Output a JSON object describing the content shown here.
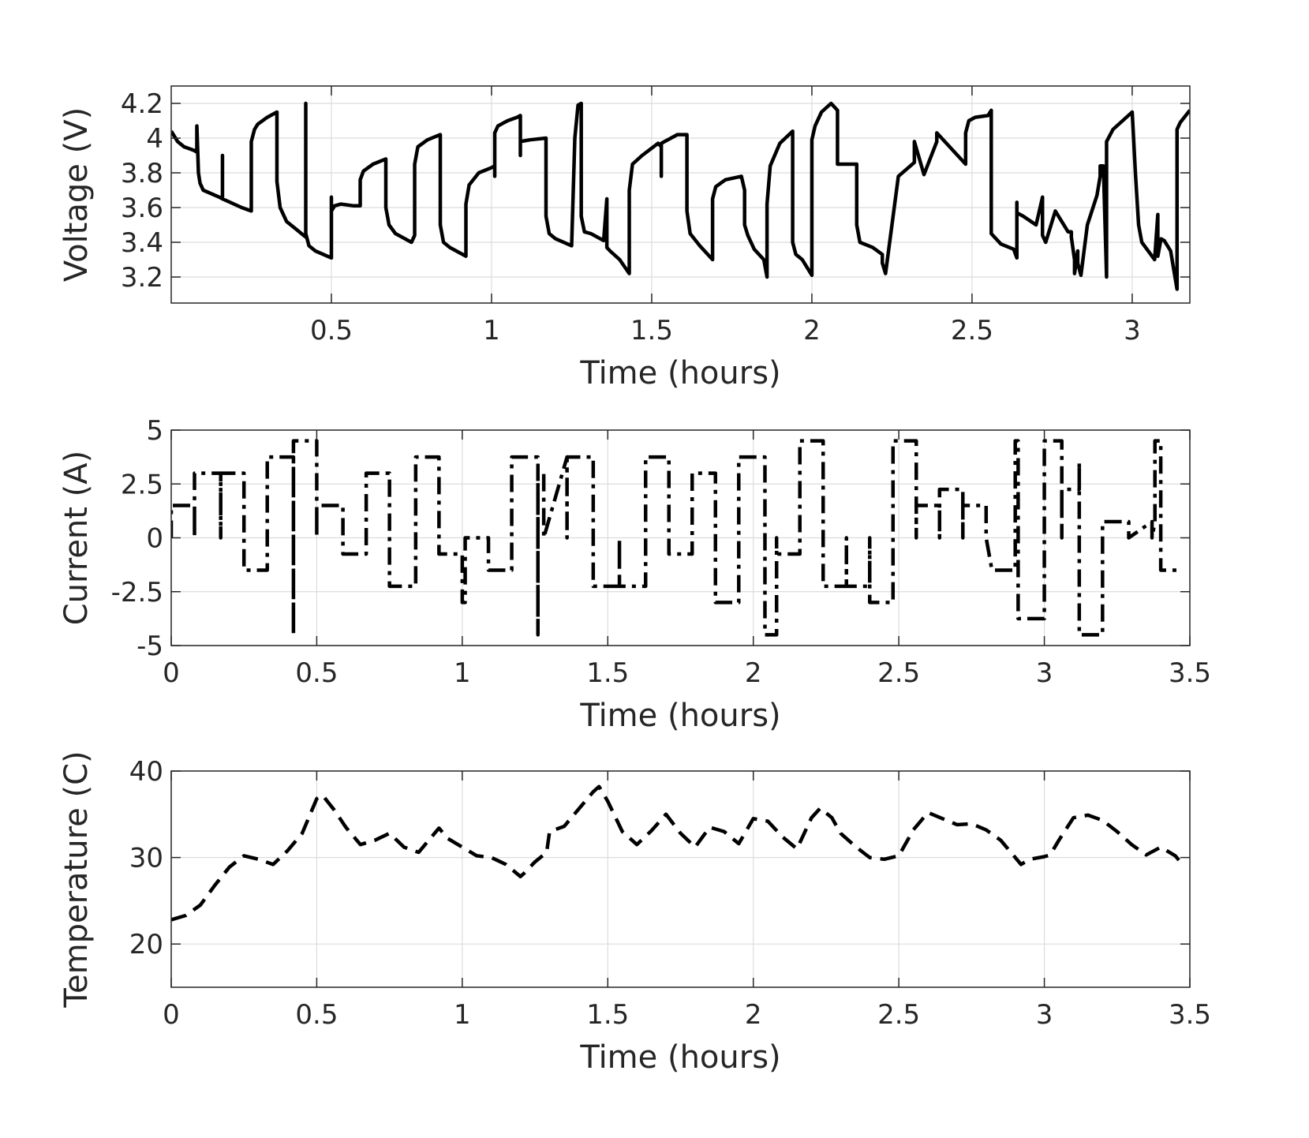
{
  "chart_data": [
    {
      "id": "voltage",
      "type": "line",
      "title": "",
      "xlabel": "Time (hours)",
      "ylabel": "Voltage (V)",
      "xlim": [
        0,
        3.18
      ],
      "ylim": [
        3.05,
        4.3
      ],
      "xticks": [
        0.5,
        1,
        1.5,
        2,
        2.5,
        3
      ],
      "xtick_labels": [
        "0.5",
        "1",
        "1.5",
        "2",
        "2.5",
        "3"
      ],
      "yticks": [
        3.2,
        3.4,
        3.6,
        3.8,
        4.0,
        4.2
      ],
      "ytick_labels": [
        "3.2",
        "3.4",
        "3.6",
        "3.8",
        "4",
        "4.2"
      ],
      "grid": true,
      "line_style": "solid",
      "color": "#000000",
      "series": [
        {
          "name": "Voltage",
          "x": [
            0.0,
            0.02,
            0.04,
            0.07,
            0.08,
            0.08,
            0.085,
            0.09,
            0.1,
            0.15,
            0.16,
            0.16,
            0.16,
            0.22,
            0.25,
            0.25,
            0.26,
            0.27,
            0.3,
            0.33,
            0.33,
            0.34,
            0.36,
            0.4,
            0.42,
            0.42,
            0.42,
            0.43,
            0.45,
            0.5,
            0.5,
            0.5,
            0.51,
            0.53,
            0.57,
            0.59,
            0.59,
            0.6,
            0.63,
            0.67,
            0.67,
            0.68,
            0.7,
            0.75,
            0.76,
            0.76,
            0.77,
            0.8,
            0.84,
            0.84,
            0.85,
            0.87,
            0.92,
            0.92,
            0.93,
            0.96,
            1.0,
            1.01,
            1.01,
            1.01,
            1.02,
            1.05,
            1.08,
            1.09,
            1.09,
            1.09,
            1.12,
            1.17,
            1.17,
            1.18,
            1.2,
            1.25,
            1.26,
            1.27,
            1.28,
            1.28,
            1.29,
            1.31,
            1.35,
            1.36,
            1.36,
            1.36,
            1.37,
            1.4,
            1.43,
            1.43,
            1.44,
            1.47,
            1.52,
            1.53,
            1.53,
            1.53,
            1.58,
            1.61,
            1.61,
            1.62,
            1.65,
            1.69,
            1.69,
            1.7,
            1.73,
            1.78,
            1.79,
            1.79,
            1.8,
            1.82,
            1.85,
            1.86,
            1.86,
            1.87,
            1.9,
            1.94,
            1.94,
            1.95,
            1.97,
            2.0,
            2.0,
            2.01,
            2.03,
            2.06,
            2.08,
            2.08,
            2.09,
            2.13,
            2.14,
            2.14,
            2.15,
            2.19,
            2.22,
            2.22,
            2.23,
            2.27,
            2.32,
            2.32,
            2.32,
            2.35,
            2.39,
            2.39,
            2.39,
            2.48,
            2.48,
            2.49,
            2.51,
            2.55,
            2.56,
            2.56,
            2.56,
            2.59,
            2.63,
            2.64,
            2.64,
            2.64,
            2.66,
            2.7,
            2.72,
            2.72,
            2.72,
            2.73,
            2.76,
            2.8,
            2.81,
            2.81,
            2.82,
            2.82,
            2.83,
            2.83,
            2.84,
            2.86,
            2.89,
            2.9,
            2.9,
            2.91,
            2.92,
            2.92,
            2.92,
            2.94,
            2.97,
            3.0,
            3.01,
            3.02,
            3.03,
            3.05,
            3.07,
            3.08,
            3.08,
            3.09,
            3.1,
            3.12,
            3.13,
            3.14,
            3.14,
            3.14,
            3.15,
            3.18
          ],
          "y": [
            4.04,
            3.98,
            3.95,
            3.93,
            3.92,
            4.07,
            3.8,
            3.74,
            3.7,
            3.66,
            3.65,
            3.9,
            3.65,
            3.6,
            3.58,
            3.98,
            4.05,
            4.08,
            4.12,
            4.15,
            3.75,
            3.6,
            3.52,
            3.46,
            3.43,
            4.2,
            3.45,
            3.38,
            3.35,
            3.31,
            3.66,
            3.58,
            3.61,
            3.62,
            3.61,
            3.61,
            3.76,
            3.81,
            3.85,
            3.88,
            3.6,
            3.5,
            3.45,
            3.4,
            3.44,
            3.85,
            3.95,
            3.99,
            4.02,
            3.5,
            3.4,
            3.37,
            3.32,
            3.62,
            3.73,
            3.8,
            3.83,
            3.84,
            3.78,
            4.03,
            4.07,
            4.1,
            4.12,
            4.13,
            3.9,
            3.98,
            3.99,
            4.0,
            3.55,
            3.45,
            3.42,
            3.38,
            4.0,
            4.19,
            4.2,
            3.55,
            3.46,
            3.45,
            3.41,
            3.65,
            3.4,
            3.37,
            3.35,
            3.3,
            3.22,
            3.7,
            3.85,
            3.9,
            3.97,
            3.95,
            3.78,
            3.97,
            4.02,
            4.02,
            3.58,
            3.45,
            3.38,
            3.3,
            3.65,
            3.72,
            3.76,
            3.78,
            3.7,
            3.5,
            3.44,
            3.36,
            3.3,
            3.2,
            3.62,
            3.84,
            3.97,
            4.04,
            3.4,
            3.33,
            3.3,
            3.21,
            3.99,
            4.07,
            4.15,
            4.2,
            4.16,
            3.85,
            3.85,
            3.85,
            3.85,
            3.5,
            3.4,
            3.37,
            3.33,
            3.28,
            3.22,
            3.78,
            3.86,
            3.92,
            3.98,
            3.79,
            3.98,
            4.01,
            4.03,
            3.85,
            4.03,
            4.1,
            4.12,
            4.13,
            4.16,
            3.6,
            3.45,
            3.39,
            3.36,
            3.31,
            3.63,
            3.57,
            3.55,
            3.5,
            3.66,
            3.47,
            3.44,
            3.4,
            3.58,
            3.46,
            3.46,
            3.43,
            3.3,
            3.22,
            3.35,
            3.28,
            3.21,
            3.5,
            3.67,
            3.78,
            3.84,
            3.84,
            3.2,
            3.84,
            3.98,
            4.05,
            4.1,
            4.15,
            3.8,
            3.5,
            3.4,
            3.35,
            3.3,
            3.56,
            3.32,
            3.42,
            3.41,
            3.35,
            3.24,
            3.13,
            3.95,
            4.05,
            4.09,
            4.16
          ]
        }
      ]
    },
    {
      "id": "current",
      "type": "line",
      "title": "",
      "xlabel": "Time (hours)",
      "ylabel": "Current (A)",
      "xlim": [
        0,
        3.5
      ],
      "ylim": [
        -5,
        5
      ],
      "xticks": [
        0,
        0.5,
        1,
        1.5,
        2,
        2.5,
        3,
        3.5
      ],
      "xtick_labels": [
        "0",
        "0.5",
        "1",
        "1.5",
        "2",
        "2.5",
        "3",
        "3.5"
      ],
      "yticks": [
        -5,
        -2.5,
        0,
        2.5,
        5
      ],
      "ytick_labels": [
        "-5",
        "-2.5",
        "0",
        "2.5",
        "5"
      ],
      "grid": true,
      "line_style": "dashdot",
      "color": "#000000",
      "series": [
        {
          "name": "Current",
          "x": [
            0.0,
            0.0,
            0.08,
            0.08,
            0.08,
            0.08,
            0.17,
            0.17,
            0.17,
            0.25,
            0.25,
            0.33,
            0.33,
            0.42,
            0.42,
            0.42,
            0.42,
            0.5,
            0.5,
            0.5,
            0.5,
            0.59,
            0.59,
            0.67,
            0.67,
            0.75,
            0.75,
            0.84,
            0.84,
            0.92,
            0.92,
            1.0,
            1.0,
            1.01,
            1.01,
            1.09,
            1.09,
            1.17,
            1.17,
            1.26,
            1.26,
            1.26,
            1.26,
            1.28,
            1.28,
            1.36,
            1.36,
            1.36,
            1.36,
            1.45,
            1.45,
            1.54,
            1.54,
            1.54,
            1.63,
            1.63,
            1.71,
            1.71,
            1.79,
            1.79,
            1.87,
            1.87,
            1.95,
            1.95,
            2.04,
            2.04,
            2.08,
            2.08,
            2.08,
            2.16,
            2.16,
            2.24,
            2.24,
            2.32,
            2.32,
            2.32,
            2.4,
            2.4,
            2.4,
            2.48,
            2.48,
            2.56,
            2.56,
            2.56,
            2.56,
            2.64,
            2.64,
            2.64,
            2.64,
            2.72,
            2.72,
            2.72,
            2.8,
            2.8,
            2.82,
            2.82,
            2.9,
            2.9,
            2.91,
            2.91,
            2.91,
            2.92,
            2.92,
            3.0,
            3.0,
            3.06,
            3.06,
            3.06,
            3.06,
            3.12,
            3.12,
            3.12,
            3.12,
            3.2,
            3.2,
            3.29,
            3.29,
            3.37,
            3.37,
            3.37,
            3.38,
            3.38,
            3.4,
            3.4,
            3.46
          ],
          "y": [
            0.0,
            1.5,
            1.5,
            0.0,
            1.5,
            3.0,
            3.0,
            0.0,
            3.0,
            3.0,
            -1.5,
            -1.5,
            3.75,
            3.75,
            -4.5,
            4.5,
            4.5,
            4.5,
            0.0,
            1.5,
            1.5,
            1.5,
            -0.75,
            -0.75,
            3.0,
            3.0,
            -2.25,
            -2.25,
            3.75,
            3.75,
            -0.75,
            -0.75,
            -3.0,
            -3.0,
            0.0,
            0.0,
            -1.5,
            -1.5,
            3.75,
            3.75,
            -4.5,
            3.0,
            3.0,
            3.0,
            0.0,
            3.75,
            3.75,
            0.0,
            3.75,
            3.75,
            -2.25,
            -2.25,
            0.0,
            -2.25,
            -2.25,
            3.75,
            3.75,
            -0.75,
            -0.75,
            3.0,
            3.0,
            -3.0,
            -3.0,
            3.75,
            3.75,
            -4.5,
            -4.5,
            0.0,
            -0.75,
            -0.75,
            4.5,
            4.5,
            -2.25,
            -2.25,
            0.0,
            -2.25,
            -2.25,
            0.0,
            -3.0,
            -3.0,
            4.5,
            4.5,
            0.0,
            1.5,
            1.5,
            1.5,
            0.0,
            2.25,
            2.25,
            2.25,
            0.0,
            1.5,
            1.5,
            0.0,
            -1.5,
            -1.5,
            -1.5,
            4.5,
            4.5,
            0.0,
            -3.75,
            -3.75,
            -3.75,
            -3.75,
            4.5,
            4.5,
            0.0,
            2.25,
            2.25,
            2.25,
            3.5,
            0.0,
            -4.5,
            -4.5,
            0.75,
            0.75,
            0.0,
            0.75,
            0.75,
            0.0,
            0.75,
            4.5,
            4.5,
            -1.5,
            -1.5
          ]
        }
      ]
    },
    {
      "id": "temperature",
      "type": "line",
      "title": "",
      "xlabel": "Time (hours)",
      "ylabel": "Temperature (C)",
      "xlim": [
        0,
        3.5
      ],
      "ylim": [
        15,
        40
      ],
      "xticks": [
        0,
        0.5,
        1,
        1.5,
        2,
        2.5,
        3,
        3.5
      ],
      "xtick_labels": [
        "0",
        "0.5",
        "1",
        "1.5",
        "2",
        "2.5",
        "3",
        "3.5"
      ],
      "yticks": [
        20,
        30,
        40
      ],
      "ytick_labels": [
        "20",
        "30",
        "40"
      ],
      "grid": true,
      "line_style": "dashed",
      "color": "#000000",
      "series": [
        {
          "name": "Temperature",
          "x": [
            0.0,
            0.05,
            0.1,
            0.15,
            0.2,
            0.25,
            0.3,
            0.35,
            0.4,
            0.45,
            0.5,
            0.52,
            0.56,
            0.6,
            0.65,
            0.7,
            0.75,
            0.8,
            0.85,
            0.9,
            0.92,
            0.95,
            1.0,
            1.05,
            1.1,
            1.15,
            1.2,
            1.21,
            1.25,
            1.29,
            1.3,
            1.35,
            1.4,
            1.45,
            1.47,
            1.5,
            1.55,
            1.6,
            1.65,
            1.7,
            1.75,
            1.8,
            1.85,
            1.9,
            1.95,
            2.0,
            2.05,
            2.1,
            2.15,
            2.2,
            2.23,
            2.27,
            2.3,
            2.35,
            2.4,
            2.45,
            2.5,
            2.55,
            2.6,
            2.65,
            2.7,
            2.75,
            2.8,
            2.85,
            2.9,
            2.92,
            2.95,
            3.0,
            3.02,
            3.05,
            3.1,
            3.15,
            3.2,
            3.25,
            3.3,
            3.35,
            3.4,
            3.45,
            3.48
          ],
          "y": [
            22.8,
            23.3,
            24.5,
            26.8,
            28.9,
            30.2,
            29.8,
            29.2,
            30.8,
            32.8,
            36.8,
            37.2,
            35.5,
            33.5,
            31.5,
            32.0,
            32.8,
            31.2,
            30.6,
            32.6,
            33.4,
            32.2,
            31.2,
            30.2,
            30.0,
            29.2,
            27.8,
            28.1,
            29.5,
            30.6,
            33.0,
            33.6,
            35.6,
            37.6,
            38.2,
            36.5,
            33.0,
            31.5,
            33.1,
            35.0,
            32.8,
            31.2,
            33.5,
            33.0,
            31.6,
            34.5,
            34.2,
            32.4,
            31.0,
            34.6,
            35.7,
            34.6,
            32.8,
            31.3,
            30.0,
            29.8,
            30.2,
            33.2,
            35.2,
            34.5,
            33.8,
            33.9,
            33.2,
            32.0,
            30.0,
            29.2,
            29.8,
            30.1,
            30.3,
            32.0,
            34.6,
            34.9,
            34.3,
            33.0,
            31.5,
            30.3,
            31.2,
            30.2,
            29.0
          ]
        }
      ]
    }
  ]
}
